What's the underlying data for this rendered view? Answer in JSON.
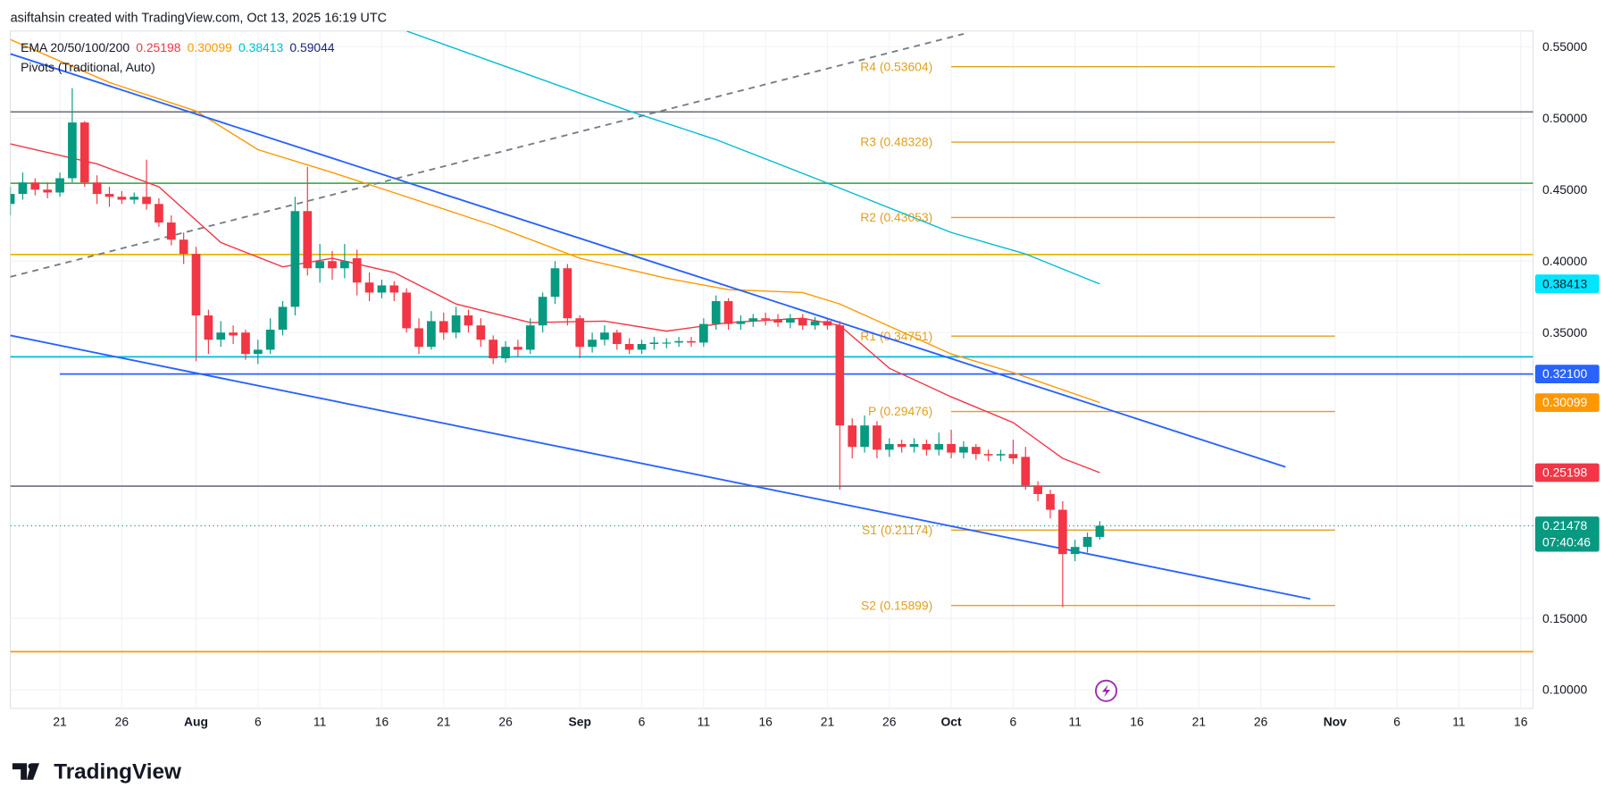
{
  "header": {
    "text": "asiftahsin created with TradingView.com, Oct 13, 2025 16:19 UTC"
  },
  "legend": {
    "ema_label": "EMA 20/50/100/200",
    "ema_values": [
      {
        "value": 0.25198,
        "color": "#f23645"
      },
      {
        "value": 0.30099,
        "color": "#ff9800"
      },
      {
        "value": 0.38413,
        "color": "#00bcd4"
      },
      {
        "value": 0.59044,
        "color": "#1a237e"
      }
    ],
    "pivots_label": "Pivots (Traditional, Auto)"
  },
  "chart_data": {
    "type": "candlestick",
    "x": [
      "2025-07-17",
      "2025-07-18",
      "2025-07-19",
      "2025-07-20",
      "2025-07-21",
      "2025-07-22",
      "2025-07-23",
      "2025-07-24",
      "2025-07-25",
      "2025-07-26",
      "2025-07-27",
      "2025-07-28",
      "2025-07-29",
      "2025-07-30",
      "2025-07-31",
      "2025-08-01",
      "2025-08-02",
      "2025-08-03",
      "2025-08-04",
      "2025-08-05",
      "2025-08-06",
      "2025-08-07",
      "2025-08-08",
      "2025-08-09",
      "2025-08-10",
      "2025-08-11",
      "2025-08-12",
      "2025-08-13",
      "2025-08-14",
      "2025-08-15",
      "2025-08-16",
      "2025-08-17",
      "2025-08-18",
      "2025-08-19",
      "2025-08-20",
      "2025-08-21",
      "2025-08-22",
      "2025-08-23",
      "2025-08-24",
      "2025-08-25",
      "2025-08-26",
      "2025-08-27",
      "2025-08-28",
      "2025-08-29",
      "2025-08-30",
      "2025-08-31",
      "2025-09-01",
      "2025-09-02",
      "2025-09-03",
      "2025-09-04",
      "2025-09-05",
      "2025-09-06",
      "2025-09-07",
      "2025-09-08",
      "2025-09-09",
      "2025-09-10",
      "2025-09-11",
      "2025-09-12",
      "2025-09-13",
      "2025-09-14",
      "2025-09-15",
      "2025-09-16",
      "2025-09-17",
      "2025-09-18",
      "2025-09-19",
      "2025-09-20",
      "2025-09-21",
      "2025-09-22",
      "2025-09-23",
      "2025-09-24",
      "2025-09-25",
      "2025-09-26",
      "2025-09-27",
      "2025-09-28",
      "2025-09-29",
      "2025-09-30",
      "2025-10-01",
      "2025-10-02",
      "2025-10-03",
      "2025-10-04",
      "2025-10-05",
      "2025-10-06",
      "2025-10-07",
      "2025-10-08",
      "2025-10-09",
      "2025-10-10",
      "2025-10-11",
      "2025-10-12",
      "2025-10-13"
    ],
    "open": [
      0.44,
      0.447,
      0.455,
      0.45,
      0.448,
      0.458,
      0.497,
      0.455,
      0.447,
      0.445,
      0.443,
      0.445,
      0.44,
      0.427,
      0.415,
      0.405,
      0.362,
      0.345,
      0.35,
      0.35,
      0.335,
      0.338,
      0.352,
      0.368,
      0.435,
      0.395,
      0.4,
      0.395,
      0.402,
      0.385,
      0.378,
      0.383,
      0.378,
      0.353,
      0.34,
      0.358,
      0.35,
      0.362,
      0.355,
      0.345,
      0.332,
      0.34,
      0.338,
      0.355,
      0.375,
      0.395,
      0.36,
      0.34,
      0.345,
      0.35,
      0.342,
      0.338,
      0.342,
      0.343,
      0.343,
      0.344,
      0.343,
      0.356,
      0.372,
      0.356,
      0.358,
      0.36,
      0.359,
      0.357,
      0.36,
      0.355,
      0.358,
      0.355,
      0.285,
      0.27,
      0.285,
      0.268,
      0.272,
      0.27,
      0.272,
      0.268,
      0.272,
      0.266,
      0.27,
      0.265,
      0.264,
      0.265,
      0.263,
      0.243,
      0.237,
      0.226,
      0.195,
      0.2,
      0.207
    ],
    "high": [
      0.452,
      0.462,
      0.458,
      0.455,
      0.462,
      0.521,
      0.498,
      0.46,
      0.452,
      0.449,
      0.448,
      0.471,
      0.444,
      0.432,
      0.42,
      0.41,
      0.366,
      0.358,
      0.355,
      0.352,
      0.345,
      0.36,
      0.372,
      0.445,
      0.466,
      0.412,
      0.407,
      0.412,
      0.408,
      0.392,
      0.387,
      0.386,
      0.381,
      0.36,
      0.365,
      0.364,
      0.368,
      0.366,
      0.36,
      0.348,
      0.344,
      0.345,
      0.36,
      0.378,
      0.4,
      0.398,
      0.362,
      0.35,
      0.355,
      0.352,
      0.346,
      0.345,
      0.347,
      0.346,
      0.347,
      0.347,
      0.36,
      0.376,
      0.374,
      0.362,
      0.363,
      0.364,
      0.363,
      0.363,
      0.363,
      0.361,
      0.36,
      0.358,
      0.29,
      0.292,
      0.288,
      0.276,
      0.275,
      0.276,
      0.275,
      0.28,
      0.282,
      0.274,
      0.272,
      0.268,
      0.268,
      0.275,
      0.27,
      0.246,
      0.24,
      0.232,
      0.205,
      0.21,
      0.218
    ],
    "low": [
      0.432,
      0.443,
      0.446,
      0.444,
      0.445,
      0.455,
      0.452,
      0.44,
      0.438,
      0.44,
      0.44,
      0.436,
      0.424,
      0.411,
      0.398,
      0.33,
      0.335,
      0.34,
      0.342,
      0.331,
      0.328,
      0.335,
      0.348,
      0.362,
      0.39,
      0.385,
      0.387,
      0.388,
      0.376,
      0.372,
      0.374,
      0.372,
      0.35,
      0.335,
      0.338,
      0.345,
      0.346,
      0.35,
      0.34,
      0.328,
      0.329,
      0.333,
      0.335,
      0.35,
      0.37,
      0.355,
      0.332,
      0.336,
      0.341,
      0.338,
      0.335,
      0.335,
      0.338,
      0.339,
      0.34,
      0.34,
      0.34,
      0.352,
      0.352,
      0.352,
      0.354,
      0.355,
      0.354,
      0.353,
      0.352,
      0.352,
      0.352,
      0.24,
      0.262,
      0.266,
      0.262,
      0.263,
      0.266,
      0.266,
      0.264,
      0.264,
      0.262,
      0.262,
      0.261,
      0.26,
      0.26,
      0.258,
      0.24,
      0.232,
      0.22,
      0.158,
      0.19,
      0.196,
      0.205
    ],
    "close": [
      0.447,
      0.455,
      0.45,
      0.448,
      0.458,
      0.497,
      0.455,
      0.447,
      0.445,
      0.443,
      0.445,
      0.44,
      0.427,
      0.415,
      0.405,
      0.362,
      0.345,
      0.35,
      0.348,
      0.335,
      0.338,
      0.352,
      0.368,
      0.435,
      0.395,
      0.4,
      0.395,
      0.4,
      0.385,
      0.378,
      0.383,
      0.378,
      0.353,
      0.34,
      0.358,
      0.35,
      0.362,
      0.355,
      0.345,
      0.332,
      0.34,
      0.338,
      0.355,
      0.375,
      0.395,
      0.36,
      0.34,
      0.345,
      0.35,
      0.342,
      0.338,
      0.342,
      0.343,
      0.343,
      0.344,
      0.343,
      0.356,
      0.372,
      0.356,
      0.358,
      0.36,
      0.359,
      0.357,
      0.36,
      0.355,
      0.358,
      0.355,
      0.285,
      0.27,
      0.285,
      0.268,
      0.272,
      0.27,
      0.272,
      0.268,
      0.272,
      0.266,
      0.27,
      0.265,
      0.264,
      0.265,
      0.262,
      0.243,
      0.237,
      0.226,
      0.195,
      0.2,
      0.207,
      0.2148
    ],
    "up_color": "#089981",
    "down_color": "#f23645",
    "xlim": [
      "2025-07-17",
      "2025-11-17"
    ],
    "xticks": [
      {
        "value": "2025-07-21",
        "label": "21"
      },
      {
        "value": "2025-07-26",
        "label": "26"
      },
      {
        "value": "2025-08-01",
        "label": "Aug"
      },
      {
        "value": "2025-08-06",
        "label": "6"
      },
      {
        "value": "2025-08-11",
        "label": "11"
      },
      {
        "value": "2025-08-16",
        "label": "16"
      },
      {
        "value": "2025-08-21",
        "label": "21"
      },
      {
        "value": "2025-08-26",
        "label": "26"
      },
      {
        "value": "2025-09-01",
        "label": "Sep"
      },
      {
        "value": "2025-09-06",
        "label": "6"
      },
      {
        "value": "2025-09-11",
        "label": "11"
      },
      {
        "value": "2025-09-16",
        "label": "16"
      },
      {
        "value": "2025-09-21",
        "label": "21"
      },
      {
        "value": "2025-09-26",
        "label": "26"
      },
      {
        "value": "2025-10-01",
        "label": "Oct"
      },
      {
        "value": "2025-10-06",
        "label": "6"
      },
      {
        "value": "2025-10-11",
        "label": "11"
      },
      {
        "value": "2025-10-16",
        "label": "16"
      },
      {
        "value": "2025-10-21",
        "label": "21"
      },
      {
        "value": "2025-10-26",
        "label": "26"
      },
      {
        "value": "2025-11-01",
        "label": "Nov"
      },
      {
        "value": "2025-11-06",
        "label": "6"
      },
      {
        "value": "2025-11-11",
        "label": "11"
      },
      {
        "value": "2025-11-16",
        "label": "16"
      }
    ],
    "ylim": [
      0.087,
      0.561
    ],
    "yticks": [
      {
        "value": 0.1,
        "label": "0.10000"
      },
      {
        "value": 0.15,
        "label": "0.15000"
      },
      {
        "value": 0.35,
        "label": "0.35000"
      },
      {
        "value": 0.4,
        "label": "0.40000"
      },
      {
        "value": 0.45,
        "label": "0.45000"
      },
      {
        "value": 0.5,
        "label": "0.50000"
      },
      {
        "value": 0.55,
        "label": "0.55000"
      }
    ],
    "grid": true,
    "ema_lines": [
      {
        "color": "#f23645",
        "x": [
          "2025-07-17",
          "2025-07-24",
          "2025-07-29",
          "2025-08-03",
          "2025-08-08",
          "2025-08-12",
          "2025-08-17",
          "2025-08-22",
          "2025-08-28",
          "2025-09-03",
          "2025-09-08",
          "2025-09-13",
          "2025-09-19",
          "2025-09-22",
          "2025-09-26",
          "2025-10-01",
          "2025-10-06",
          "2025-10-10",
          "2025-10-13"
        ],
        "values": [
          0.482,
          0.468,
          0.452,
          0.413,
          0.396,
          0.402,
          0.392,
          0.37,
          0.357,
          0.358,
          0.351,
          0.357,
          0.36,
          0.355,
          0.325,
          0.305,
          0.287,
          0.262,
          0.252
        ]
      },
      {
        "color": "#ff9800",
        "x": [
          "2025-07-17",
          "2025-07-25",
          "2025-08-01",
          "2025-08-06",
          "2025-08-12",
          "2025-08-18",
          "2025-08-25",
          "2025-09-01",
          "2025-09-08",
          "2025-09-13",
          "2025-09-19",
          "2025-09-22",
          "2025-10-01",
          "2025-10-06",
          "2025-10-13"
        ],
        "values": [
          0.555,
          0.525,
          0.505,
          0.478,
          0.462,
          0.445,
          0.425,
          0.402,
          0.388,
          0.38,
          0.378,
          0.37,
          0.335,
          0.322,
          0.301
        ]
      },
      {
        "color": "#00bcd4",
        "x": [
          "2025-08-18",
          "2025-08-28",
          "2025-09-05",
          "2025-09-12",
          "2025-09-20",
          "2025-10-01",
          "2025-10-07",
          "2025-10-13"
        ],
        "values": [
          0.561,
          0.53,
          0.505,
          0.485,
          0.458,
          0.42,
          0.405,
          0.384
        ]
      }
    ],
    "levels": [
      {
        "value": 0.5044,
        "color": "#787b86"
      },
      {
        "value": 0.4545,
        "color": "#4caf50"
      },
      {
        "value": 0.4046,
        "color": "#e6b800"
      },
      {
        "value": 0.333,
        "color": "#00bcd4"
      },
      {
        "value": 0.321,
        "color": "#2962ff",
        "from": "2025-07-21"
      },
      {
        "value": 0.2425,
        "color": "#787b86"
      },
      {
        "value": 0.1267,
        "color": "#ff9800"
      }
    ],
    "trend_lines": [
      {
        "x": [
          "2025-07-17",
          "2025-10-28"
        ],
        "values": [
          0.545,
          0.256
        ],
        "color": "#2962ff"
      },
      {
        "x": [
          "2025-07-17",
          "2025-10-30"
        ],
        "values": [
          0.348,
          0.1636
        ],
        "color": "#2962ff"
      },
      {
        "x": [
          "2025-07-17",
          "2025-10-02"
        ],
        "values": [
          0.389,
          0.559
        ],
        "color": "#787b86",
        "dashed": true
      }
    ],
    "pivot_range": [
      "2025-10-01",
      "2025-11-01"
    ],
    "pivot_color": "#e0a020",
    "pivots": [
      {
        "value": 0.53604,
        "label": "R4 (0.53604)"
      },
      {
        "value": 0.48328,
        "label": "R3 (0.48328)"
      },
      {
        "value": 0.43053,
        "label": "R2 (0.43053)"
      },
      {
        "value": 0.34751,
        "label": "R1 (0.34751)"
      },
      {
        "value": 0.29476,
        "label": "P (0.29476)"
      },
      {
        "value": 0.21174,
        "label": "S1 (0.21174)"
      },
      {
        "value": 0.15899,
        "label": "S2 (0.15899)"
      }
    ],
    "last_price": {
      "value": 0.21478,
      "label": "0.21478",
      "countdown": "07:40:46",
      "color": "#089981"
    },
    "badges": [
      {
        "value": 0.38413,
        "label": "0.38413",
        "color": "#00e5ff",
        "text_color": "#131722"
      },
      {
        "value": 0.321,
        "label": "0.32100",
        "color": "#2962ff",
        "text_color": "#ffffff"
      },
      {
        "value": 0.30099,
        "label": "0.30099",
        "color": "#ff9800",
        "text_color": "#ffffff"
      },
      {
        "value": 0.25198,
        "label": "0.25198",
        "color": "#f23645",
        "text_color": "#ffffff"
      }
    ]
  },
  "footer": {
    "brand": "TradingView"
  }
}
